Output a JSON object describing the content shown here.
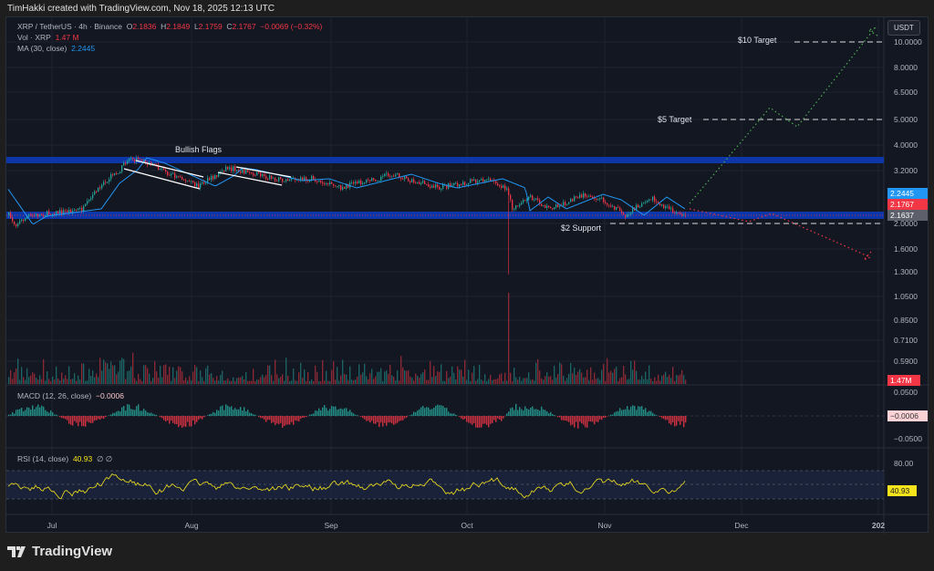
{
  "header": {
    "caption": "TimHakki created with TradingView.com, Nov 18, 2025 12:13 UTC"
  },
  "legend": {
    "symbol": "XRP / TetherUS · 4h · Binance",
    "o_label": "O",
    "o": "2.1836",
    "h_label": "H",
    "h": "2.1849",
    "l_label": "L",
    "l": "2.1759",
    "c_label": "C",
    "c": "2.1767",
    "change": "−0.0069 (−0.32%)",
    "vol_label": "Vol · XRP",
    "vol": "1.47 M",
    "ma_label": "MA (30, close)",
    "ma": "2.2445",
    "macd_label": "MACD (12, 26, close)",
    "macd": "−0.0006",
    "rsi_label": "RSI (14, close)",
    "rsi": "40.93",
    "rsi_extra": "∅ ∅"
  },
  "currency_button": "USDT",
  "price_axis": [
    "10.0000",
    "8.0000",
    "6.5000",
    "5.0000",
    "4.0000",
    "3.2000",
    "2.0000",
    "1.6000",
    "1.3000",
    "1.0500",
    "0.8500",
    "0.7100",
    "0.5900"
  ],
  "price_tags": {
    "ma": "2.2445",
    "close": "2.1767",
    "other": "2.1637",
    "volume": "1.47M",
    "macd": "−0.0006",
    "rsi": "40.93"
  },
  "macd_axis": [
    "0.0500",
    "−0.0500"
  ],
  "rsi_axis": [
    "80.00"
  ],
  "time_axis": [
    "Jul",
    "Aug",
    "Sep",
    "Oct",
    "Nov",
    "Dec",
    "202"
  ],
  "annotations": {
    "flags": "Bullish Flags",
    "target10": "$10 Target",
    "target5": "$5 Target",
    "support": "$2 Support"
  },
  "colors": {
    "up": "#26a69a",
    "down": "#f23645",
    "ma": "#2196f3",
    "zone": "#0d36a8",
    "rsi": "#f5e41c",
    "bull_path": "#4caf50",
    "bear_path": "#f23645"
  },
  "footer": {
    "brand": "TradingView"
  }
}
